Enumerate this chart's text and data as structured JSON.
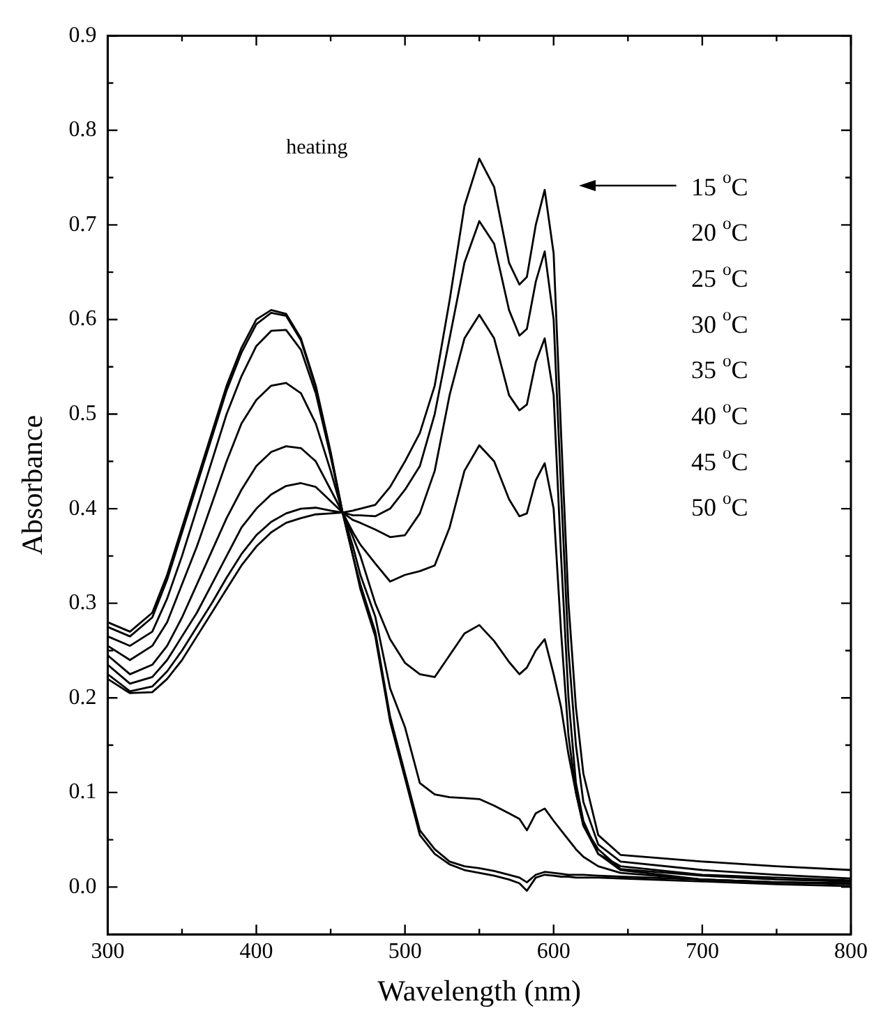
{
  "chart_data": {
    "type": "line",
    "xlabel": "Wavelength (nm)",
    "ylabel": "Absorbance",
    "annotations": [
      "heating",
      "15 $^{o}$C",
      "20 $^{o}$C",
      "25 $^{o}$C",
      "30 $^{o}$C",
      "35 $^{o}$C",
      "40 $^{o}$C",
      "45 $^{o}$C",
      "50 $^{o}$C"
    ],
    "x": [
      300,
      315,
      330,
      340,
      350,
      360,
      370,
      380,
      390,
      400,
      410,
      420,
      430,
      440,
      450,
      458,
      465,
      470,
      480,
      490,
      500,
      510,
      520,
      530,
      540,
      550,
      560,
      570,
      577,
      582,
      588,
      594,
      600,
      605,
      610,
      615,
      620,
      630,
      645,
      700,
      750,
      800
    ],
    "series": [
      {
        "color": "#000000",
        "values": [
          0.22,
          0.205,
          0.206,
          0.22,
          0.24,
          0.265,
          0.29,
          0.315,
          0.34,
          0.36,
          0.375,
          0.385,
          0.39,
          0.394,
          0.395,
          0.396,
          0.398,
          0.4,
          0.404,
          0.423,
          0.45,
          0.48,
          0.53,
          0.62,
          0.72,
          0.77,
          0.74,
          0.66,
          0.637,
          0.645,
          0.7,
          0.737,
          0.67,
          0.48,
          0.3,
          0.19,
          0.12,
          0.055,
          0.034,
          0.027,
          0.022,
          0.018
        ]
      },
      {
        "color": "#000000",
        "values": [
          0.225,
          0.207,
          0.212,
          0.228,
          0.25,
          0.275,
          0.3,
          0.327,
          0.352,
          0.372,
          0.386,
          0.395,
          0.4,
          0.401,
          0.398,
          0.396,
          0.393,
          0.393,
          0.392,
          0.4,
          0.42,
          0.445,
          0.5,
          0.58,
          0.66,
          0.704,
          0.68,
          0.61,
          0.583,
          0.59,
          0.64,
          0.672,
          0.6,
          0.42,
          0.25,
          0.15,
          0.09,
          0.045,
          0.027,
          0.018,
          0.013,
          0.009
        ]
      },
      {
        "color": "#000000",
        "values": [
          0.235,
          0.215,
          0.222,
          0.24,
          0.265,
          0.29,
          0.32,
          0.35,
          0.38,
          0.4,
          0.415,
          0.424,
          0.427,
          0.423,
          0.408,
          0.396,
          0.388,
          0.385,
          0.378,
          0.37,
          0.372,
          0.395,
          0.44,
          0.52,
          0.58,
          0.605,
          0.58,
          0.52,
          0.504,
          0.51,
          0.555,
          0.58,
          0.52,
          0.35,
          0.2,
          0.11,
          0.07,
          0.035,
          0.022,
          0.013,
          0.01,
          0.007
        ]
      },
      {
        "color": "#000000",
        "values": [
          0.245,
          0.225,
          0.235,
          0.255,
          0.285,
          0.32,
          0.355,
          0.39,
          0.42,
          0.445,
          0.46,
          0.466,
          0.464,
          0.45,
          0.42,
          0.396,
          0.375,
          0.362,
          0.342,
          0.323,
          0.33,
          0.334,
          0.34,
          0.38,
          0.44,
          0.467,
          0.45,
          0.41,
          0.392,
          0.395,
          0.43,
          0.448,
          0.4,
          0.27,
          0.16,
          0.1,
          0.065,
          0.04,
          0.019,
          0.012,
          0.008,
          0.006
        ]
      },
      {
        "color": "#000000",
        "values": [
          0.255,
          0.24,
          0.255,
          0.28,
          0.32,
          0.36,
          0.405,
          0.45,
          0.49,
          0.515,
          0.53,
          0.533,
          0.522,
          0.49,
          0.44,
          0.396,
          0.37,
          0.35,
          0.3,
          0.262,
          0.237,
          0.225,
          0.222,
          0.245,
          0.268,
          0.277,
          0.26,
          0.238,
          0.225,
          0.232,
          0.25,
          0.262,
          0.225,
          0.19,
          0.14,
          0.1,
          0.065,
          0.035,
          0.018,
          0.008,
          0.005,
          0.004
        ]
      },
      {
        "color": "#000000",
        "values": [
          0.265,
          0.255,
          0.27,
          0.305,
          0.35,
          0.4,
          0.45,
          0.5,
          0.54,
          0.572,
          0.588,
          0.589,
          0.568,
          0.522,
          0.455,
          0.396,
          0.36,
          0.33,
          0.286,
          0.21,
          0.169,
          0.11,
          0.098,
          0.095,
          0.094,
          0.093,
          0.086,
          0.078,
          0.072,
          0.06,
          0.078,
          0.083,
          0.07,
          0.06,
          0.05,
          0.04,
          0.032,
          0.022,
          0.015,
          0.008,
          0.005,
          0.004
        ]
      },
      {
        "color": "#000000",
        "values": [
          0.275,
          0.265,
          0.285,
          0.325,
          0.375,
          0.425,
          0.475,
          0.525,
          0.565,
          0.595,
          0.607,
          0.604,
          0.578,
          0.528,
          0.458,
          0.396,
          0.35,
          0.32,
          0.27,
          0.18,
          0.12,
          0.06,
          0.04,
          0.027,
          0.022,
          0.02,
          0.017,
          0.013,
          0.01,
          0.005,
          0.013,
          0.016,
          0.015,
          0.014,
          0.013,
          0.013,
          0.013,
          0.012,
          0.011,
          0.008,
          0.005,
          0.003
        ]
      },
      {
        "color": "#000000",
        "values": [
          0.28,
          0.27,
          0.29,
          0.33,
          0.38,
          0.43,
          0.48,
          0.53,
          0.57,
          0.6,
          0.61,
          0.606,
          0.58,
          0.53,
          0.46,
          0.396,
          0.35,
          0.315,
          0.265,
          0.175,
          0.115,
          0.055,
          0.035,
          0.024,
          0.018,
          0.015,
          0.012,
          0.008,
          0.004,
          -0.004,
          0.01,
          0.013,
          0.012,
          0.011,
          0.011,
          0.01,
          0.01,
          0.01,
          0.009,
          0.006,
          0.003,
          0.001
        ]
      }
    ],
    "xlim": [
      300,
      800
    ],
    "xticks": [
      300,
      {
        "value": 350,
        "label": null
      },
      400,
      {
        "value": 450,
        "label": null
      },
      500,
      {
        "value": 550,
        "label": null
      },
      600,
      {
        "value": 650,
        "label": null
      },
      700,
      {
        "value": 750,
        "label": null
      },
      800
    ],
    "ylim": [
      -0.05,
      0.9
    ],
    "yticks": [
      {
        "value": -0.05,
        "label": null
      },
      {
        "value": 0,
        "label": "0.0"
      },
      {
        "value": 0.05,
        "label": null
      },
      0.1,
      {
        "value": 0.15,
        "label": null
      },
      0.2,
      {
        "value": 0.25,
        "label": null
      },
      0.3,
      {
        "value": 0.35,
        "label": null
      },
      0.4,
      {
        "value": 0.45,
        "label": null
      },
      0.5,
      {
        "value": 0.55,
        "label": null
      },
      0.6,
      {
        "value": 0.65,
        "label": null
      },
      0.7,
      {
        "value": 0.75,
        "label": null
      },
      0.8,
      {
        "value": 0.85,
        "label": null
      },
      0.9
    ],
    "grid": false,
    "marker": "none",
    "line_style": "solid"
  }
}
